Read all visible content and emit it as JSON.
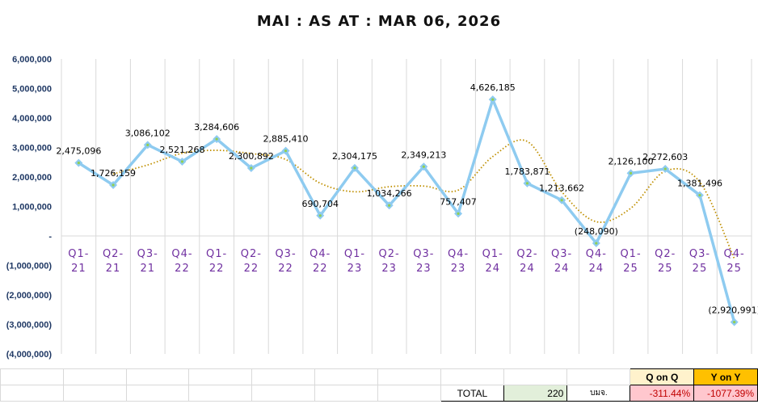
{
  "chart_data": {
    "type": "line",
    "title": "MAI : AS AT : MAR 06, 2026",
    "categories": [
      "Q1-21",
      "Q2-21",
      "Q3-21",
      "Q4-22",
      "Q1-22",
      "Q2-22",
      "Q3-22",
      "Q4-22",
      "Q1-23",
      "Q2-23",
      "Q3-23",
      "Q4-23",
      "Q1-24",
      "Q2-24",
      "Q3-24",
      "Q4-24",
      "Q1-25",
      "Q2-25",
      "Q3-25",
      "Q4-25"
    ],
    "series": [
      {
        "values": [
          2475096,
          1726159,
          3086102,
          2521268,
          3284606,
          2300892,
          2885410,
          690704,
          2304175,
          1034266,
          2349213,
          757407,
          4626185,
          1783871,
          1213662,
          -248090,
          2126100,
          2272603,
          1381496,
          -2920991
        ],
        "labels": [
          "2,475,096",
          "1,726,159",
          "3,086,102",
          "2,521,268",
          "3,284,606",
          "2,300,892",
          "2,885,410",
          "690,704",
          "2,304,175",
          "1,034,266",
          "2,349,213",
          "757,407",
          "4,626,185",
          "1,783,871",
          "1,213,662",
          "(248,090)",
          "2,126,100",
          "2,272,603",
          "1,381,496",
          "(2,920,991)"
        ],
        "color": "#8ecbf0",
        "marker_color": "#92d050"
      }
    ],
    "trendline": {
      "type": "2-period moving average",
      "color": "#bf8f00",
      "style": "dotted"
    },
    "ylim": [
      -4000000,
      6000000
    ],
    "yticks": [
      "6,000,000",
      "5,000,000",
      "4,000,000",
      "3,000,000",
      "2,000,000",
      "1,000,000",
      "-",
      "(1,000,000)",
      "(2,000,000)",
      "(3,000,000)",
      "(4,000,000)"
    ],
    "ytick_values": [
      6000000,
      5000000,
      4000000,
      3000000,
      2000000,
      1000000,
      0,
      -1000000,
      -2000000,
      -3000000,
      -4000000
    ],
    "grid": "vertical"
  },
  "table": {
    "qoq_header": "Q on Q",
    "yoy_header": "Y on Y",
    "total_label": "TOTAL",
    "total_value": "220",
    "unit": "บมจ.",
    "qoq_value": "-311.44%",
    "yoy_value": "-1077.39%"
  }
}
